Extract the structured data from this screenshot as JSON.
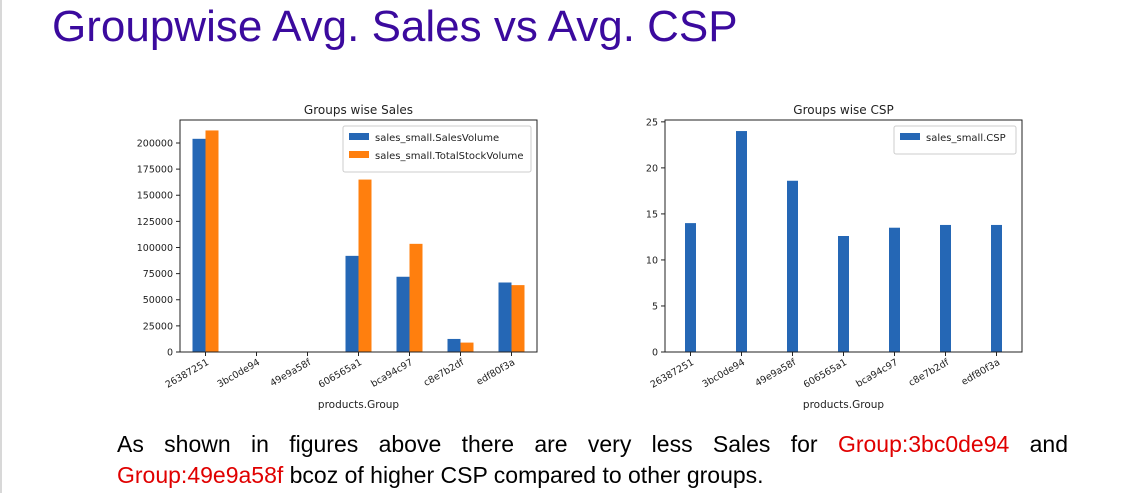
{
  "slide": {
    "title": "Groupwise Avg. Sales vs Avg. CSP",
    "caption_prefix": "As shown in figures above there are very less Sales for ",
    "highlight_1": "Group:3bc0de94",
    "caption_mid": " and ",
    "highlight_2": "Group:49e9a58f",
    "caption_suffix": " bcoz of higher CSP compared to other groups."
  },
  "colors": {
    "title": "#3b0a9e",
    "blue": "#2567b5",
    "orange": "#ff7f0e",
    "highlight": "#e00000"
  },
  "chart_data": [
    {
      "type": "bar",
      "title": "Groups wise Sales",
      "xlabel": "products.Group",
      "ylabel": "",
      "categories": [
        "26387251",
        "3bc0de94",
        "49e9a58f",
        "606565a1",
        "bca94c97",
        "c8e7b2df",
        "edf80f3a"
      ],
      "series": [
        {
          "name": "sales_small.SalesVolume",
          "color": "#2567b5",
          "values": [
            204000,
            0,
            0,
            92000,
            72000,
            12500,
            66500
          ]
        },
        {
          "name": "sales_small.TotalStockVolume",
          "color": "#ff7f0e",
          "values": [
            212000,
            0,
            0,
            165000,
            103500,
            9000,
            64000
          ]
        }
      ],
      "yticks": [
        0,
        25000,
        50000,
        75000,
        100000,
        125000,
        150000,
        175000,
        200000
      ],
      "ylim": [
        0,
        222000
      ],
      "legend": "top-right"
    },
    {
      "type": "bar",
      "title": "Groups wise CSP",
      "xlabel": "products.Group",
      "ylabel": "",
      "categories": [
        "26387251",
        "3bc0de94",
        "49e9a58f",
        "606565a1",
        "bca94c97",
        "c8e7b2df",
        "edf80f3a"
      ],
      "series": [
        {
          "name": "sales_small.CSP",
          "color": "#2567b5",
          "values": [
            14.0,
            24.0,
            18.6,
            12.6,
            13.5,
            13.8,
            13.8
          ]
        }
      ],
      "yticks": [
        0,
        5,
        10,
        15,
        20,
        25
      ],
      "ylim": [
        0,
        25.2
      ],
      "legend": "top-right"
    }
  ]
}
